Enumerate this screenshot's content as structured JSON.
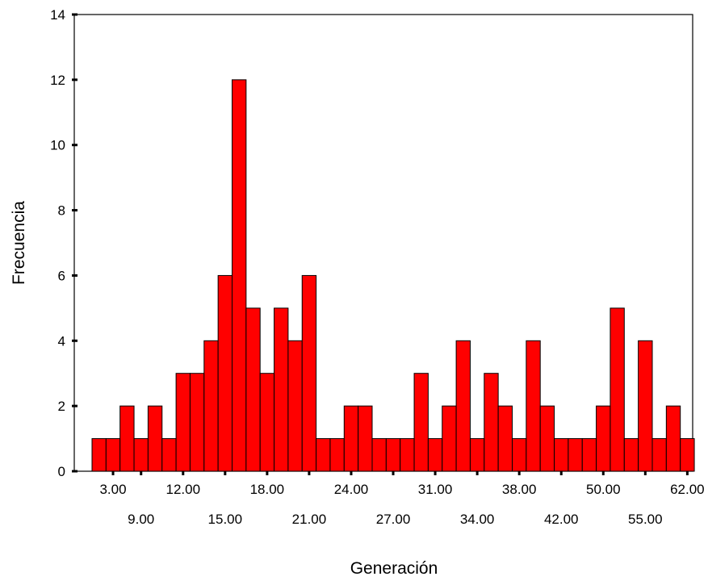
{
  "chart_data": {
    "type": "bar",
    "title": "",
    "xlabel": "Generación",
    "ylabel": "Frecuencia",
    "ylim": [
      0,
      14
    ],
    "yticks": [
      "0",
      "2",
      "4",
      "6",
      "8",
      "10",
      "12",
      "14"
    ],
    "xtick_labels": [
      {
        "label": "3.00",
        "bar_index": 1,
        "row": 1
      },
      {
        "label": "9.00",
        "bar_index": 3,
        "row": 2
      },
      {
        "label": "12.00",
        "bar_index": 6,
        "row": 1
      },
      {
        "label": "15.00",
        "bar_index": 9,
        "row": 2
      },
      {
        "label": "18.00",
        "bar_index": 12,
        "row": 1
      },
      {
        "label": "21.00",
        "bar_index": 15,
        "row": 2
      },
      {
        "label": "24.00",
        "bar_index": 18,
        "row": 1
      },
      {
        "label": "27.00",
        "bar_index": 21,
        "row": 2
      },
      {
        "label": "31.00",
        "bar_index": 24,
        "row": 1
      },
      {
        "label": "34.00",
        "bar_index": 27,
        "row": 2
      },
      {
        "label": "38.00",
        "bar_index": 30,
        "row": 1
      },
      {
        "label": "42.00",
        "bar_index": 33,
        "row": 2
      },
      {
        "label": "50.00",
        "bar_index": 36,
        "row": 1
      },
      {
        "label": "55.00",
        "bar_index": 39,
        "row": 2
      },
      {
        "label": "62.00",
        "bar_index": 42,
        "row": 1
      }
    ],
    "values": [
      1,
      1,
      2,
      1,
      2,
      1,
      3,
      3,
      4,
      6,
      12,
      5,
      3,
      5,
      4,
      6,
      1,
      1,
      2,
      2,
      1,
      1,
      1,
      3,
      1,
      2,
      4,
      1,
      3,
      2,
      1,
      4,
      2,
      1,
      1,
      1,
      2,
      5,
      1,
      4,
      1,
      2,
      1
    ],
    "bar_color": "#ff0000",
    "grid": false
  }
}
